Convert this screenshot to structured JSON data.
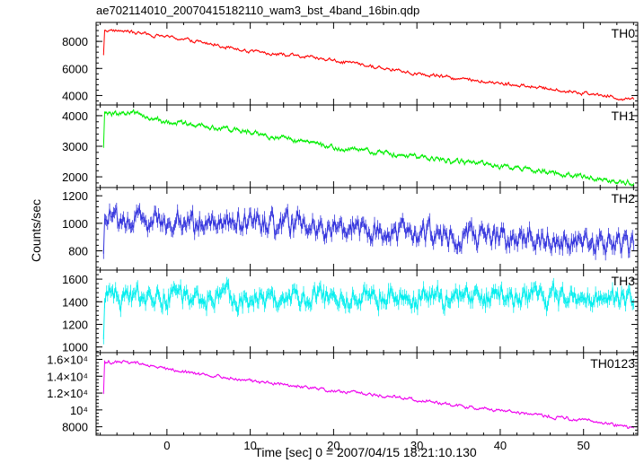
{
  "title": "ae702114010_20070415182110_wam3_bst_4band_16bin.qdp",
  "xlabel": "Time [sec] 0 = 2007/04/15 18:21:10.130",
  "ylabel": "Counts/sec",
  "chart_data": {
    "type": "line",
    "shared_x": {
      "range": [
        -8.5,
        56.5
      ],
      "ticks": [
        0,
        10,
        20,
        30,
        40,
        50
      ],
      "tick_labels": [
        "0",
        "10",
        "20",
        "30",
        "40",
        "50"
      ]
    },
    "panels": [
      {
        "name": "TH0",
        "color": "#ff0000",
        "ylim": [
          3300,
          9400
        ],
        "yticks": [
          4000,
          6000,
          8000
        ],
        "ytick_labels": [
          "4000",
          "6000",
          "8000"
        ],
        "pre_burst": 7000,
        "profile": [
          [
            -7.5,
            8850
          ],
          [
            -5,
            8750
          ],
          [
            0,
            8350
          ],
          [
            10,
            7300
          ],
          [
            20,
            6600
          ],
          [
            30,
            5600
          ],
          [
            40,
            4900
          ],
          [
            50,
            4200
          ],
          [
            55.5,
            3700
          ]
        ],
        "noise": 130,
        "err": 90
      },
      {
        "name": "TH1",
        "color": "#00ee00",
        "ylim": [
          1650,
          4350
        ],
        "yticks": [
          2000,
          3000,
          4000
        ],
        "ytick_labels": [
          "2000",
          "3000",
          "4000"
        ],
        "pre_burst": 3000,
        "profile": [
          [
            -7.5,
            4050
          ],
          [
            -4,
            4100
          ],
          [
            0,
            3800
          ],
          [
            10,
            3450
          ],
          [
            20,
            2950
          ],
          [
            30,
            2650
          ],
          [
            40,
            2350
          ],
          [
            50,
            2000
          ],
          [
            55.5,
            1800
          ]
        ],
        "noise": 90,
        "err": 70
      },
      {
        "name": "TH2",
        "color": "#3333dd",
        "ylim": [
          660,
          1260
        ],
        "yticks": [
          800,
          1000,
          1200
        ],
        "ytick_labels": [
          "800",
          "1000",
          "1200"
        ],
        "pre_burst": 780,
        "profile": [
          [
            -7.5,
            1030
          ],
          [
            0,
            1010
          ],
          [
            10,
            990
          ],
          [
            20,
            960
          ],
          [
            30,
            930
          ],
          [
            40,
            900
          ],
          [
            50,
            870
          ],
          [
            55.5,
            860
          ]
        ],
        "noise": 85,
        "err": 75
      },
      {
        "name": "TH3",
        "color": "#00eeee",
        "ylim": [
          950,
          1680
        ],
        "yticks": [
          1000,
          1200,
          1400,
          1600
        ],
        "ytick_labels": [
          "1000",
          "1200",
          "1400",
          "1600"
        ],
        "pre_burst": 1050,
        "profile": [
          [
            -7.5,
            1440
          ],
          [
            0,
            1440
          ],
          [
            20,
            1430
          ],
          [
            40,
            1440
          ],
          [
            55.5,
            1450
          ]
        ],
        "noise": 90,
        "err": 90
      },
      {
        "name": "TH0123",
        "color": "#ee00ee",
        "ylim": [
          7000,
          16800
        ],
        "yticks": [
          8000,
          10000,
          12000,
          14000,
          16000
        ],
        "ytick_labels": [
          "8000",
          "10⁴",
          "1.2×10⁴",
          "1.4×10⁴",
          "1.6×10⁴"
        ],
        "pre_burst": 12000,
        "profile": [
          [
            -7.5,
            15700
          ],
          [
            -4,
            15600
          ],
          [
            0,
            14800
          ],
          [
            10,
            13500
          ],
          [
            20,
            12300
          ],
          [
            30,
            11200
          ],
          [
            40,
            9900
          ],
          [
            50,
            8800
          ],
          [
            55.5,
            7900
          ]
        ],
        "noise": 200,
        "err": 150
      }
    ]
  }
}
